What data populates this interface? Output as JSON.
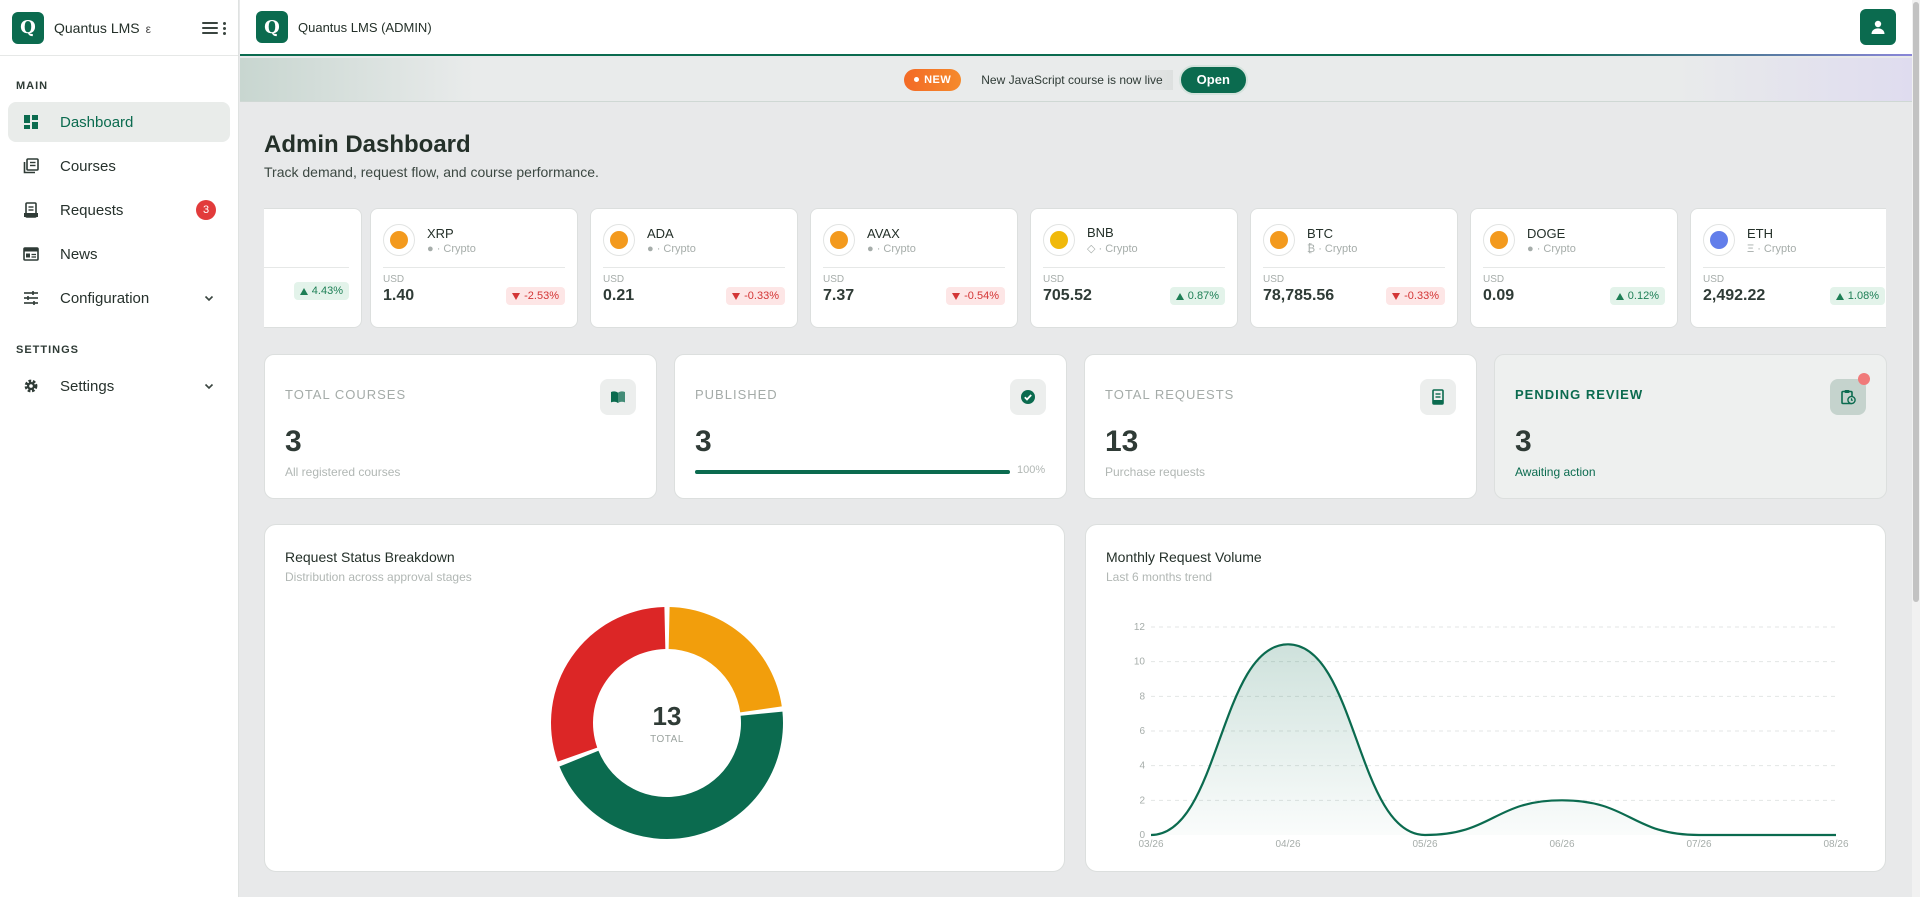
{
  "app": {
    "name": "Quantus LMS",
    "logo_letter": "Q",
    "sidebar_title_tail": "ε",
    "topbar_title": "Quantus LMS  (ADMIN)"
  },
  "sidebar": {
    "sections": [
      {
        "label": "MAIN",
        "items": [
          {
            "label": "Dashboard",
            "icon": "dashboard-icon",
            "active": true
          },
          {
            "label": "Courses",
            "icon": "courses-icon"
          },
          {
            "label": "Requests",
            "icon": "requests-icon",
            "badge": "3"
          },
          {
            "label": "News",
            "icon": "news-icon"
          },
          {
            "label": "Configuration",
            "icon": "sliders-icon",
            "expandable": true
          }
        ]
      },
      {
        "label": "SETTINGS",
        "items": [
          {
            "label": "Settings",
            "icon": "gear-icon",
            "expandable": true
          }
        ]
      }
    ]
  },
  "announcement": {
    "badge": "NEW",
    "text": "New JavaScript course is now live",
    "button": "Open"
  },
  "page": {
    "title": "Admin Dashboard",
    "subtitle": "Track demand, request flow, and course performance."
  },
  "ticker": {
    "partial_change": "4.43%",
    "items": [
      {
        "symbol": "XRP",
        "type": "● · Crypto",
        "currency": "USD",
        "price": "1.40",
        "change": "-2.53%",
        "dir": "down",
        "coin_color": "#f39a1e"
      },
      {
        "symbol": "ADA",
        "type": "● · Crypto",
        "currency": "USD",
        "price": "0.21",
        "change": "-0.33%",
        "dir": "down",
        "coin_color": "#f39a1e"
      },
      {
        "symbol": "AVAX",
        "type": "● · Crypto",
        "currency": "USD",
        "price": "7.37",
        "change": "-0.54%",
        "dir": "down",
        "coin_color": "#f39a1e"
      },
      {
        "symbol": "BNB",
        "type": "◇ · Crypto",
        "currency": "USD",
        "price": "705.52",
        "change": "0.87%",
        "dir": "up",
        "coin_color": "#f0b90b"
      },
      {
        "symbol": "BTC",
        "type": "₿ · Crypto",
        "currency": "USD",
        "price": "78,785.56",
        "change": "-0.33%",
        "dir": "down",
        "coin_color": "#f39a1e"
      },
      {
        "symbol": "DOGE",
        "type": "● · Crypto",
        "currency": "USD",
        "price": "0.09",
        "change": "0.12%",
        "dir": "up",
        "coin_color": "#f39a1e"
      },
      {
        "symbol": "ETH",
        "type": "Ξ · Crypto",
        "currency": "USD",
        "price": "2,492.22",
        "change": "1.08%",
        "dir": "up",
        "coin_color": "#627eea"
      }
    ]
  },
  "stats": [
    {
      "label": "TOTAL COURSES",
      "value": "3",
      "caption": "All registered courses",
      "icon": "book-icon"
    },
    {
      "label": "PUBLISHED",
      "value": "3",
      "progress": 1.0,
      "progress_label": "100%",
      "icon": "check-circle-icon"
    },
    {
      "label": "TOTAL REQUESTS",
      "value": "13",
      "caption": "Purchase requests",
      "icon": "receipt-icon"
    },
    {
      "label": "PENDING REVIEW",
      "value": "3",
      "caption": "Awaiting action",
      "icon": "clipboard-clock-icon",
      "alert_dot": true
    }
  ],
  "colors": {
    "brand": "#0b6b4f",
    "danger": "#e23b3b",
    "donut_green": "#0b6b4f",
    "donut_red": "#dc2626",
    "donut_amber": "#f29e0c"
  },
  "chart_data": [
    {
      "type": "pie",
      "title": "Request Status Breakdown",
      "subtitle": "Distribution across approval stages",
      "donut": true,
      "center_value": "13",
      "center_label": "TOTAL",
      "values": [
        3,
        6,
        4
      ],
      "slice_colors": [
        "#f29e0c",
        "#0b6b4f",
        "#dc2626"
      ]
    },
    {
      "type": "area",
      "title": "Monthly Request Volume",
      "subtitle": "Last 6 months trend",
      "categories": [
        "03/26",
        "04/26",
        "05/26",
        "06/26",
        "07/26",
        "08/26"
      ],
      "values": [
        0,
        11,
        0,
        2,
        0,
        0
      ],
      "ylim": [
        0,
        12
      ],
      "yticks": [
        0,
        2,
        4,
        6,
        8,
        10,
        12
      ],
      "grid": true,
      "line_color": "#0b6b4f"
    }
  ]
}
